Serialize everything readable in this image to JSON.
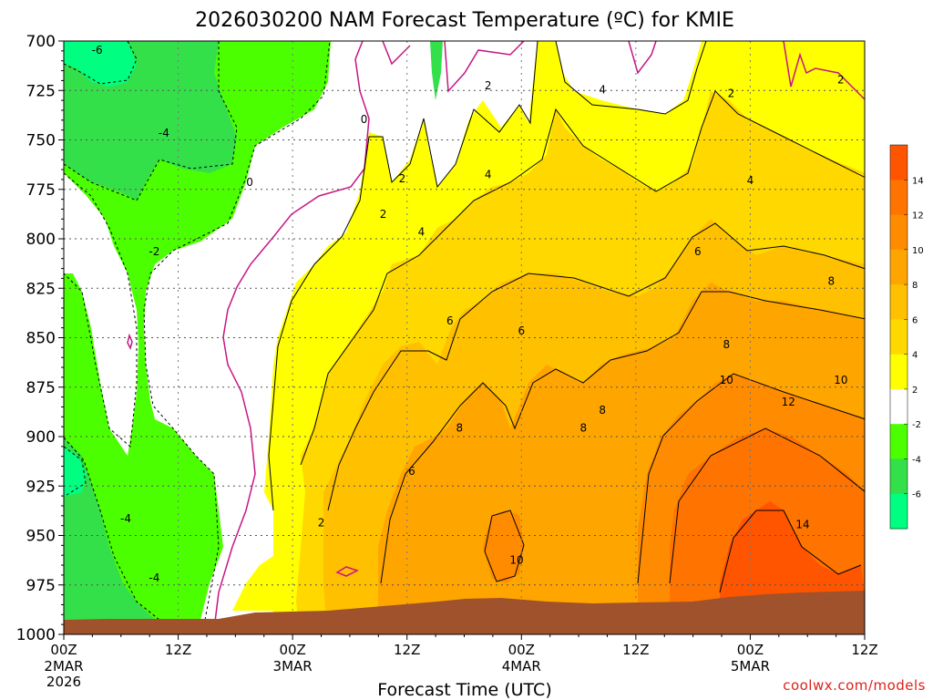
{
  "chart_data": {
    "type": "heatmap",
    "title": "2026030200 NAM Forecast Temperature (ºC) for KMIE",
    "xlabel": "Forecast Time (UTC)",
    "ylabel": "",
    "credit": "coolwx.com/models",
    "y_axis": {
      "units": "hPa",
      "range": [
        700,
        1000
      ],
      "inverted": true,
      "ticks": [
        "700",
        "725",
        "750",
        "775",
        "800",
        "825",
        "850",
        "875",
        "900",
        "925",
        "950",
        "975",
        "1000"
      ],
      "tick_values": [
        700,
        725,
        750,
        775,
        800,
        825,
        850,
        875,
        900,
        925,
        950,
        975,
        1000
      ]
    },
    "x_axis": {
      "units": "hours",
      "range": [
        0,
        84
      ],
      "ticks": [
        {
          "label": "00Z",
          "sub1": "2MAR",
          "sub2": "2026",
          "hour": 0
        },
        {
          "label": "12Z",
          "sub1": "",
          "sub2": "",
          "hour": 12
        },
        {
          "label": "00Z",
          "sub1": "3MAR",
          "sub2": "",
          "hour": 24
        },
        {
          "label": "12Z",
          "sub1": "",
          "sub2": "",
          "hour": 36
        },
        {
          "label": "00Z",
          "sub1": "4MAR",
          "sub2": "",
          "hour": 48
        },
        {
          "label": "12Z",
          "sub1": "",
          "sub2": "",
          "hour": 60
        },
        {
          "label": "00Z",
          "sub1": "5MAR",
          "sub2": "",
          "hour": 72
        },
        {
          "label": "12Z",
          "sub1": "",
          "sub2": "",
          "hour": 84
        }
      ]
    },
    "grid": true,
    "colorbar": {
      "labels": [
        "14",
        "12",
        "10",
        "8",
        "6",
        "4",
        "2",
        "-2",
        "-4",
        "-6"
      ],
      "label_values": [
        14,
        12,
        10,
        8,
        6,
        4,
        2,
        -2,
        -4,
        -6
      ],
      "bands": [
        {
          "min": 14,
          "max": 16,
          "color": "#ff5500"
        },
        {
          "min": 12,
          "max": 14,
          "color": "#ff7300"
        },
        {
          "min": 10,
          "max": 12,
          "color": "#ff8c00"
        },
        {
          "min": 8,
          "max": 10,
          "color": "#ffa500"
        },
        {
          "min": 6,
          "max": 8,
          "color": "#ffc000"
        },
        {
          "min": 4,
          "max": 6,
          "color": "#ffd800"
        },
        {
          "min": 2,
          "max": 4,
          "color": "#ffff00"
        },
        {
          "min": -2,
          "max": 2,
          "color": "#ffffff"
        },
        {
          "min": -4,
          "max": -2,
          "color": "#4cff00"
        },
        {
          "min": -6,
          "max": -4,
          "color": "#33e04a"
        },
        {
          "min": -8,
          "max": -6,
          "color": "#00ff80"
        }
      ]
    },
    "contour_labels": [
      {
        "text": "-6",
        "hour": 3.5,
        "p": 705
      },
      {
        "text": "-4",
        "hour": 10.5,
        "p": 747
      },
      {
        "text": "-2",
        "hour": 9.5,
        "p": 807
      },
      {
        "text": "-4",
        "hour": 6.5,
        "p": 942
      },
      {
        "text": "-4",
        "hour": 9.5,
        "p": 972
      },
      {
        "text": "0",
        "hour": 19.5,
        "p": 772
      },
      {
        "text": "0",
        "hour": 31.5,
        "p": 740
      },
      {
        "text": "2",
        "hour": 33.5,
        "p": 788
      },
      {
        "text": "2",
        "hour": 35.5,
        "p": 770
      },
      {
        "text": "2",
        "hour": 44.5,
        "p": 723
      },
      {
        "text": "2",
        "hour": 27,
        "p": 944
      },
      {
        "text": "2",
        "hour": 70,
        "p": 727
      },
      {
        "text": "2",
        "hour": 81.5,
        "p": 720
      },
      {
        "text": "4",
        "hour": 37.5,
        "p": 797
      },
      {
        "text": "4",
        "hour": 44.5,
        "p": 768
      },
      {
        "text": "4",
        "hour": 56.5,
        "p": 725
      },
      {
        "text": "4",
        "hour": 72,
        "p": 771
      },
      {
        "text": "6",
        "hour": 40.5,
        "p": 842
      },
      {
        "text": "6",
        "hour": 48,
        "p": 847
      },
      {
        "text": "6",
        "hour": 36.5,
        "p": 918
      },
      {
        "text": "6",
        "hour": 66.5,
        "p": 807
      },
      {
        "text": "8",
        "hour": 41.5,
        "p": 896
      },
      {
        "text": "8",
        "hour": 54.5,
        "p": 896
      },
      {
        "text": "8",
        "hour": 56.5,
        "p": 887
      },
      {
        "text": "8",
        "hour": 69.5,
        "p": 854
      },
      {
        "text": "8",
        "hour": 80.5,
        "p": 822
      },
      {
        "text": "10",
        "hour": 47.5,
        "p": 963
      },
      {
        "text": "10",
        "hour": 69.5,
        "p": 872
      },
      {
        "text": "10",
        "hour": 81.5,
        "p": 872
      },
      {
        "text": "12",
        "hour": 76,
        "p": 883
      },
      {
        "text": "14",
        "hour": 77.5,
        "p": 945
      }
    ]
  }
}
